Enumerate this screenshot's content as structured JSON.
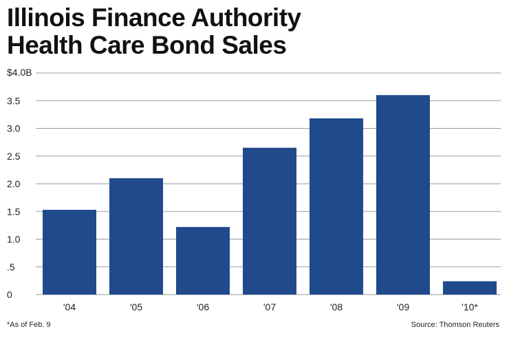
{
  "chart_data": {
    "type": "bar",
    "title": "Illinois Finance Authority Health Care Bond Sales",
    "title_lines": [
      "Illinois Finance Authority",
      "Health Care Bond Sales"
    ],
    "categories": [
      "'04",
      "'05",
      "'06",
      "'07",
      "'08",
      "'09",
      "'10*"
    ],
    "values": [
      1.53,
      2.1,
      1.22,
      2.65,
      3.18,
      3.6,
      0.24
    ],
    "ylim": [
      0,
      4.0
    ],
    "yticks": [
      0,
      0.5,
      1.0,
      1.5,
      2.0,
      2.5,
      3.0,
      3.5,
      4.0
    ],
    "ytick_labels": [
      "0",
      ".5",
      "1.0",
      "1.5",
      "2.0",
      "2.5",
      "3.0",
      "3.5",
      "$4.0B"
    ],
    "grid": true,
    "bar_color": "#1f4a8c",
    "grid_color": "#9a9a9a",
    "footnote": "*As of Feb. 9",
    "source": "Source: Thomson Reuters"
  }
}
